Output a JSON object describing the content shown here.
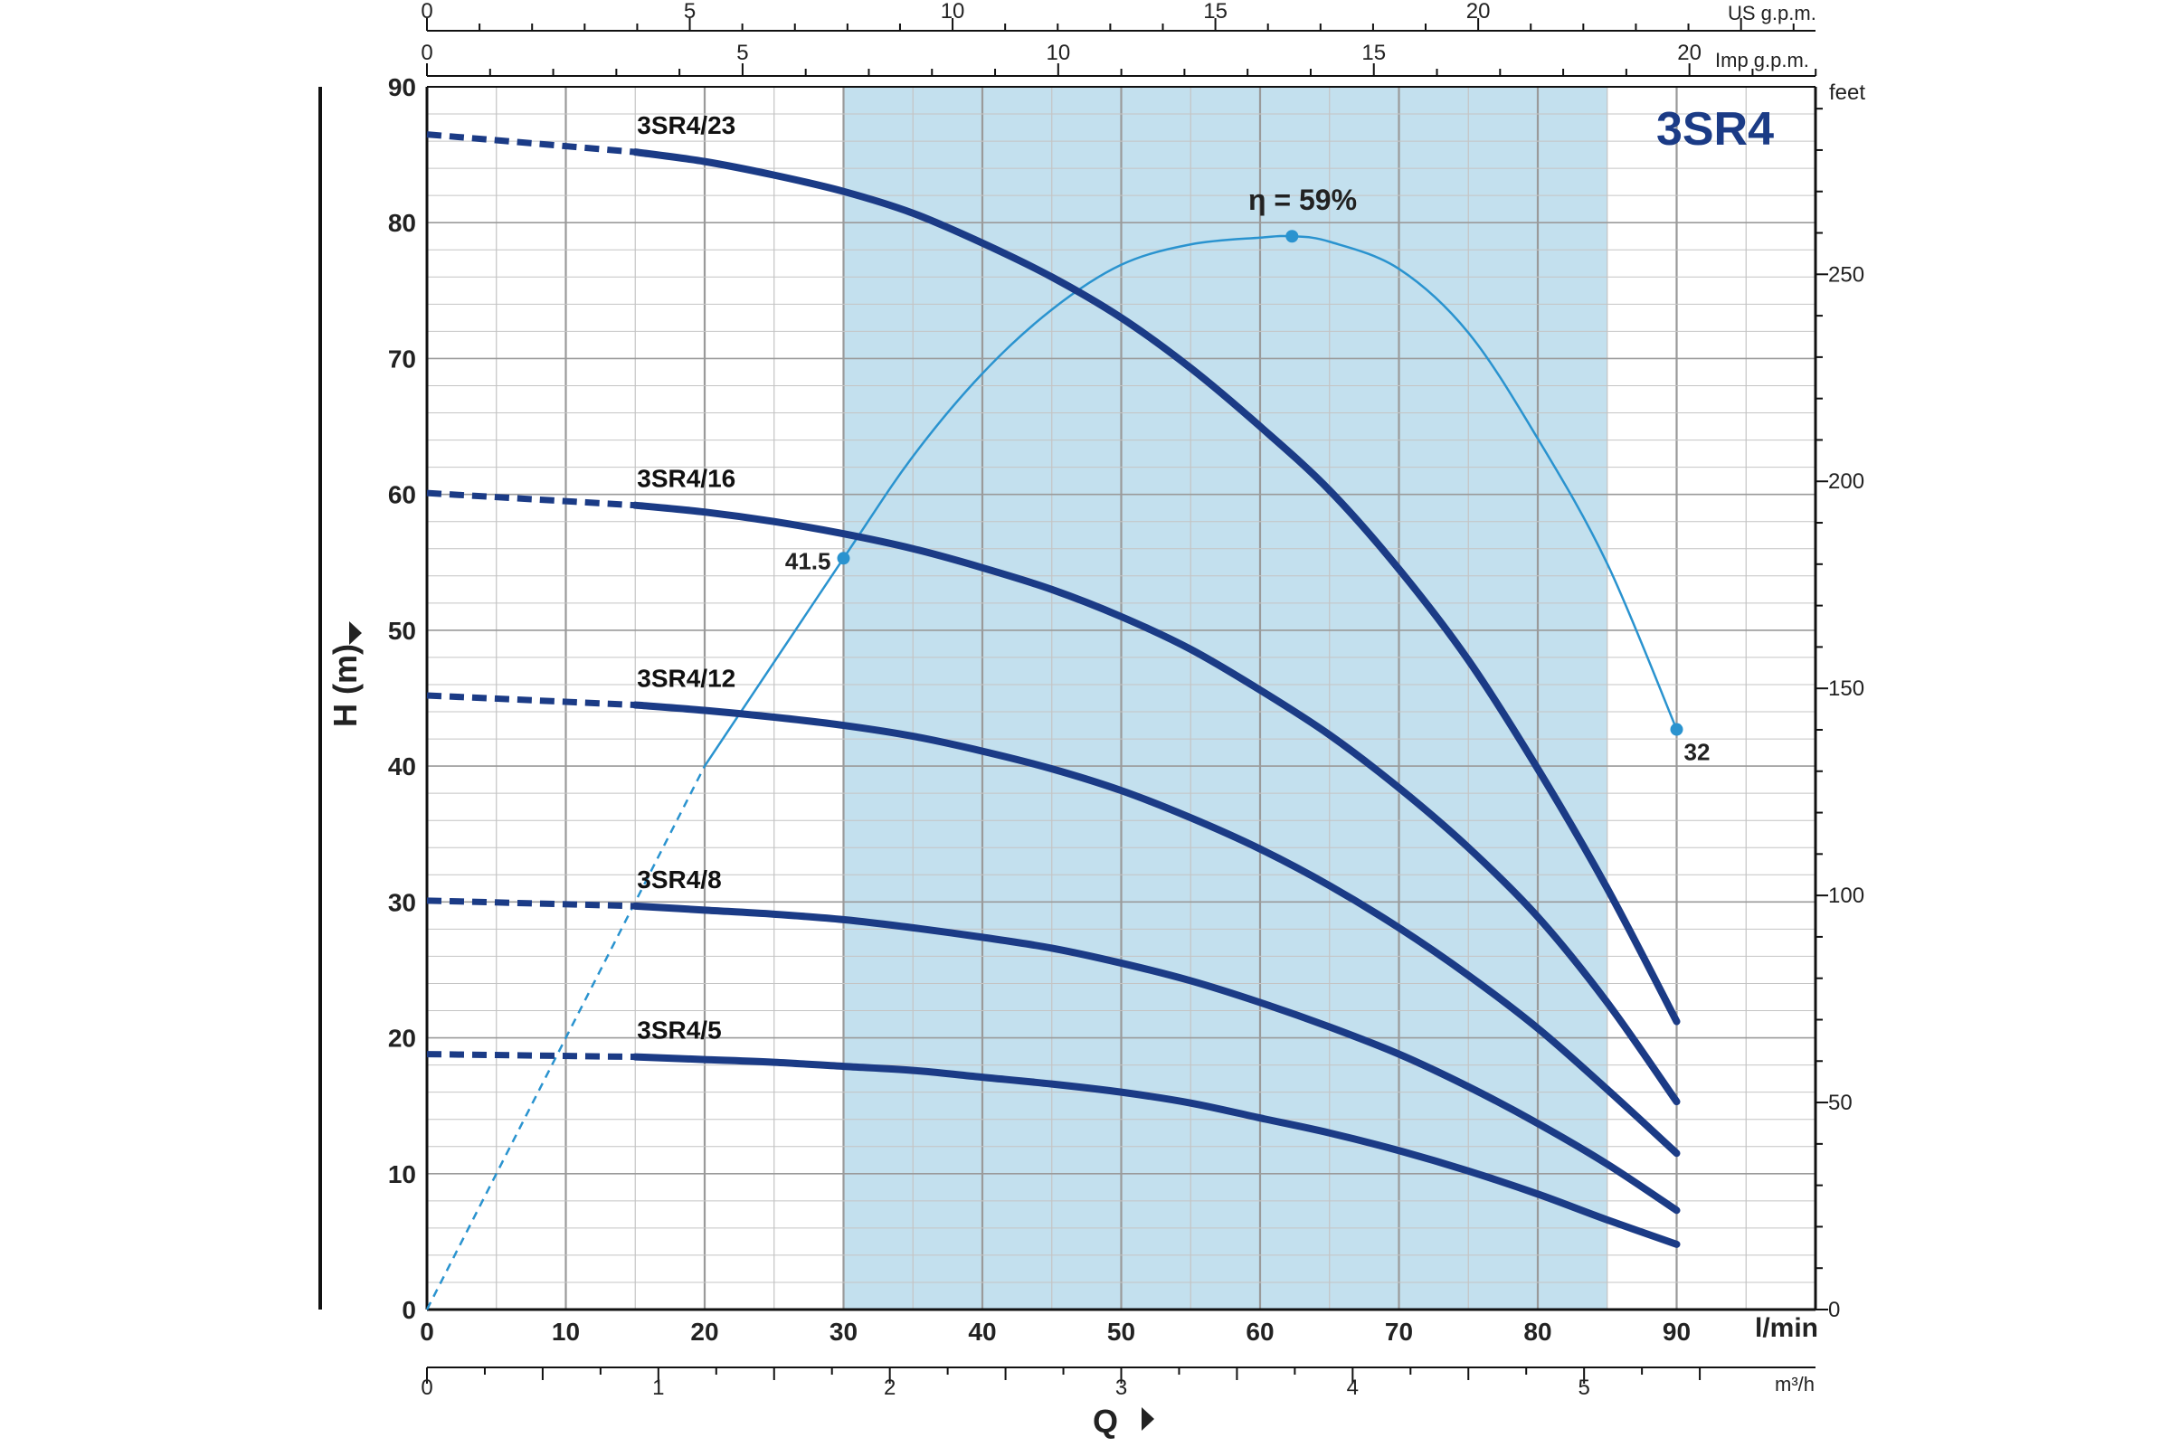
{
  "chart_data": {
    "type": "line",
    "title": "3SR4",
    "x_unit": "l/min",
    "xlim": [
      0,
      100
    ],
    "xticks": [
      0,
      10,
      20,
      30,
      40,
      50,
      60,
      70,
      80,
      90
    ],
    "ylabel": "H (m)",
    "ylim": [
      0,
      90
    ],
    "yticks": [
      0,
      10,
      20,
      30,
      40,
      50,
      60,
      70,
      80,
      90
    ],
    "y2_unit": "feet",
    "y2ticks": [
      0,
      50,
      100,
      150,
      200,
      250
    ],
    "x_m3h_unit": "m³/h",
    "x_m3h_ticks": [
      0,
      1,
      2,
      3,
      4,
      5
    ],
    "x_imp_unit": "Imp g.p.m.",
    "x_imp_ticks": [
      0,
      5,
      10,
      15,
      20
    ],
    "x_us_unit": "US g.p.m.",
    "x_us_ticks": [
      0,
      5,
      10,
      15,
      20
    ],
    "xlabel": "Q",
    "operating_range": [
      30,
      85
    ],
    "series": [
      {
        "name": "3SR4/23",
        "label_pos": "upper-left",
        "x": [
          0,
          15,
          20,
          25,
          30,
          35,
          40,
          45,
          50,
          55,
          60,
          65,
          70,
          75,
          80,
          85,
          90
        ],
        "values": [
          86.5,
          85.2,
          84.5,
          83.5,
          82.3,
          80.7,
          78.5,
          76.0,
          73.0,
          69.3,
          65.0,
          60.3,
          54.5,
          47.8,
          39.8,
          31.0,
          21.2
        ]
      },
      {
        "name": "3SR4/16",
        "label_pos": "upper-left",
        "x": [
          0,
          15,
          20,
          25,
          30,
          35,
          40,
          45,
          50,
          55,
          60,
          65,
          70,
          75,
          80,
          85,
          90
        ],
        "values": [
          60.1,
          59.2,
          58.7,
          58.0,
          57.1,
          56.0,
          54.6,
          53.0,
          51.0,
          48.6,
          45.6,
          42.3,
          38.4,
          34.0,
          28.9,
          22.6,
          15.3
        ]
      },
      {
        "name": "3SR4/12",
        "label_pos": "upper-left",
        "x": [
          0,
          15,
          20,
          25,
          30,
          35,
          40,
          45,
          50,
          55,
          60,
          65,
          70,
          75,
          80,
          85,
          90
        ],
        "values": [
          45.2,
          44.5,
          44.1,
          43.6,
          43.0,
          42.2,
          41.1,
          39.8,
          38.2,
          36.2,
          33.9,
          31.2,
          28.1,
          24.6,
          20.7,
          16.2,
          11.5
        ]
      },
      {
        "name": "3SR4/8",
        "label_pos": "upper-left",
        "x": [
          0,
          15,
          20,
          25,
          30,
          35,
          40,
          45,
          50,
          55,
          60,
          65,
          70,
          75,
          80,
          85,
          90
        ],
        "values": [
          30.1,
          29.7,
          29.4,
          29.1,
          28.7,
          28.1,
          27.4,
          26.6,
          25.5,
          24.2,
          22.6,
          20.8,
          18.8,
          16.4,
          13.7,
          10.7,
          7.3
        ]
      },
      {
        "name": "3SR4/5",
        "label_pos": "upper-left",
        "x": [
          0,
          15,
          20,
          25,
          30,
          35,
          40,
          45,
          50,
          55,
          60,
          65,
          70,
          75,
          80,
          85,
          90
        ],
        "values": [
          18.8,
          18.6,
          18.4,
          18.2,
          17.9,
          17.6,
          17.1,
          16.6,
          16.0,
          15.2,
          14.1,
          13.0,
          11.7,
          10.2,
          8.5,
          6.6,
          4.8
        ]
      }
    ],
    "dashed_until_x": 15,
    "efficiency_curve": {
      "label": "η = 59%",
      "x": [
        30,
        35,
        40,
        45,
        50,
        55,
        60,
        62.3,
        65,
        70,
        75,
        80,
        85,
        90
      ],
      "values": [
        55.3,
        62.8,
        68.9,
        73.6,
        76.9,
        78.4,
        78.9,
        79.0,
        78.6,
        76.6,
        71.9,
        64.1,
        54.9,
        42.7
      ],
      "dashed_from": [
        0,
        0
      ],
      "dashed_to": [
        20,
        40
      ],
      "solid_start": [
        20,
        40
      ],
      "points": [
        {
          "x": 30,
          "y": 55.3,
          "label": "41.5"
        },
        {
          "x": 62.3,
          "y": 79.0,
          "label": ""
        },
        {
          "x": 90,
          "y": 42.7,
          "label": "32"
        }
      ]
    },
    "colors": {
      "curve": "#1b3b86",
      "efficiency": "#2a93cf",
      "band": "#c3e0ee",
      "grid_major": "#9a9a9a",
      "grid_minor": "#c4c4c4",
      "title": "#1b3b86"
    }
  }
}
